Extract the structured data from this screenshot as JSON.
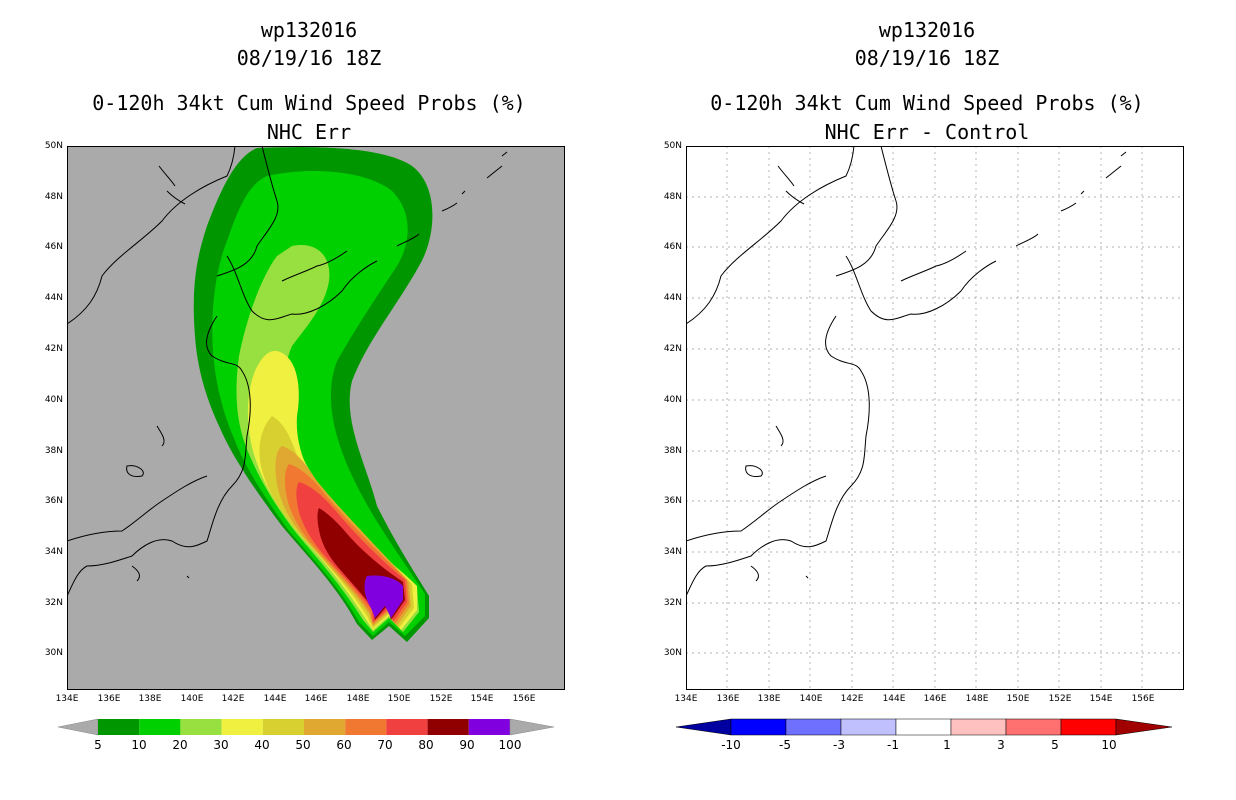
{
  "left_panel": {
    "title_line1": "wp132016",
    "title_line2": "08/19/16 18Z",
    "title_line3": "0-120h 34kt Cum Wind Speed Probs (%)",
    "title_line4": "NHC Err",
    "background_color": "#aaaaaa",
    "colorbar": {
      "labels": [
        "5",
        "10",
        "20",
        "30",
        "40",
        "50",
        "60",
        "70",
        "80",
        "90",
        "100"
      ],
      "colors": [
        "#009600",
        "#00d000",
        "#98e040",
        "#f0f040",
        "#d8d030",
        "#e0a830",
        "#f07830",
        "#f04040",
        "#900000",
        "#8000e0"
      ]
    }
  },
  "right_panel": {
    "title_line1": "wp132016",
    "title_line2": "08/19/16 18Z",
    "title_line3": "0-120h 34kt Cum Wind Speed Probs (%)",
    "title_line4": "NHC Err - Control",
    "background_color": "#ffffff",
    "colorbar": {
      "labels": [
        "-10",
        "-5",
        "-3",
        "-1",
        "1",
        "3",
        "5",
        "10"
      ],
      "colors": [
        "#0000a0",
        "#0000ff",
        "#7070ff",
        "#c0c0ff",
        "#ffffff",
        "#ffc0c0",
        "#ff7070",
        "#ff0000",
        "#a00000"
      ]
    }
  },
  "axes": {
    "lat_labels": [
      "50N",
      "48N",
      "46N",
      "44N",
      "42N",
      "40N",
      "38N",
      "36N",
      "34N",
      "32N",
      "30N"
    ],
    "lon_labels": [
      "134E",
      "136E",
      "138E",
      "140E",
      "142E",
      "144E",
      "146E",
      "148E",
      "150E",
      "152E",
      "154E",
      "156E"
    ]
  }
}
